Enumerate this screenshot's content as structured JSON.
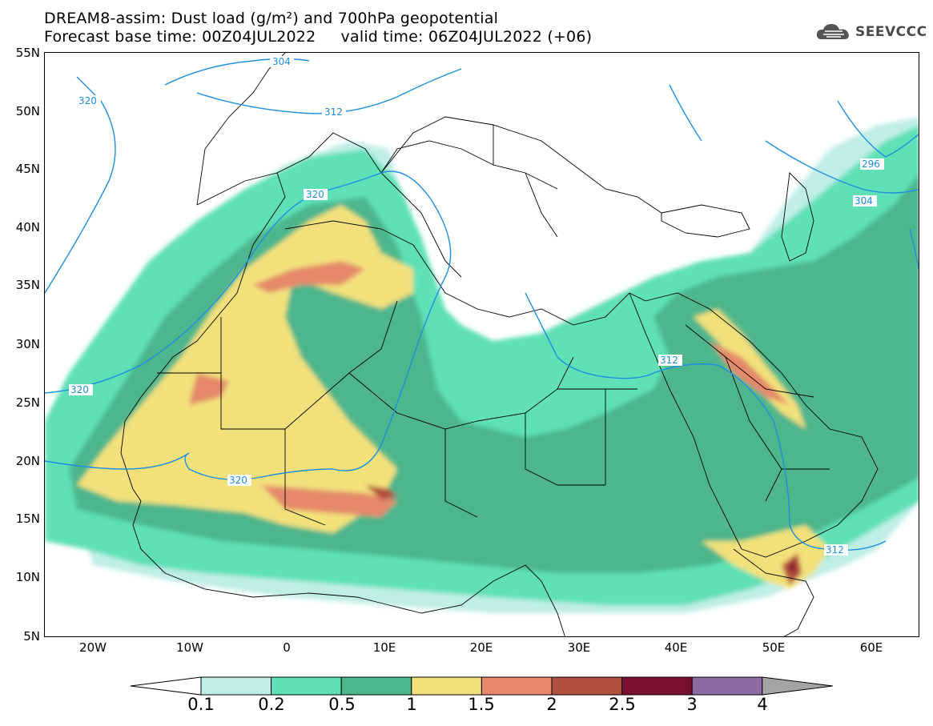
{
  "header": {
    "title_line1": "DREAM8-assim: Dust load (g/m²) and 700hPa geopotential",
    "title_line2": "Forecast base time: 00Z04JUL2022     valid time: 06Z04JUL2022 (+06)"
  },
  "logo": {
    "text": "SEEVCCC",
    "icon": "cloud-icon"
  },
  "axes": {
    "lat_labels": [
      "55N",
      "50N",
      "45N",
      "40N",
      "35N",
      "30N",
      "25N",
      "20N",
      "15N",
      "10N",
      "5N"
    ],
    "lon_labels": [
      "20W",
      "10W",
      "0",
      "10E",
      "20E",
      "30E",
      "40E",
      "50E",
      "60E"
    ]
  },
  "geopotential_labels": [
    "304",
    "312",
    "320",
    "320",
    "320",
    "320",
    "312",
    "312",
    "312",
    "304",
    "296"
  ],
  "colorbar": {
    "labels": [
      "0.1",
      "0.2",
      "0.5",
      "1",
      "1.5",
      "2",
      "2.5",
      "3",
      "4"
    ],
    "colors": [
      "#bfeee6",
      "#5fe0b6",
      "#4db68c",
      "#f2e17a",
      "#e5896a",
      "#b2503e",
      "#7a0f2e",
      "#8e6aa3"
    ],
    "under_color": "#ffffff",
    "over_color": "#a5a5a5"
  },
  "palette": {
    "contour": "#1e8fe0",
    "border": "#000000"
  }
}
